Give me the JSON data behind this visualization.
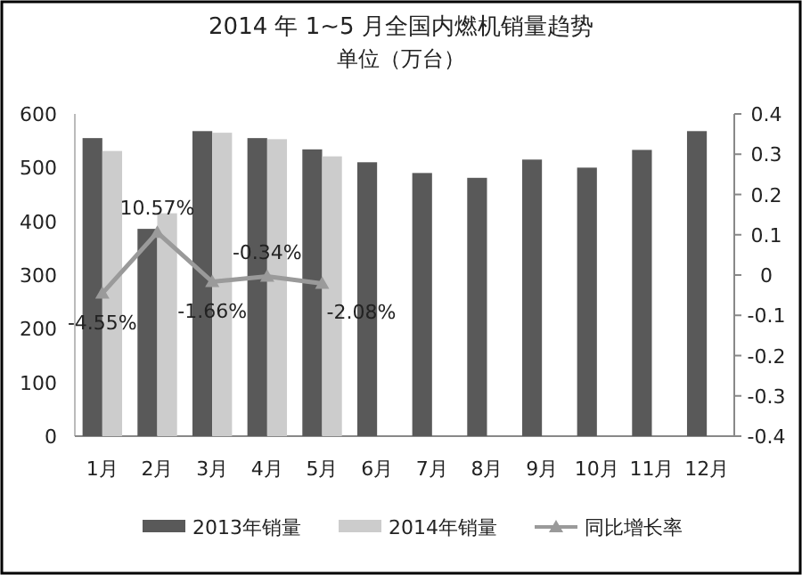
{
  "chart_data": {
    "type": "bar",
    "title": "2014 年 1~5 月全国内燃机销量趋势",
    "subtitle": "单位（万台）",
    "categories": [
      "1月",
      "2月",
      "3月",
      "4月",
      "5月",
      "6月",
      "7月",
      "8月",
      "9月",
      "10月",
      "11月",
      "12月"
    ],
    "series": [
      {
        "name": "2013年销量",
        "color": "#595959",
        "values": [
          555,
          386,
          568,
          555,
          534,
          510,
          490,
          481,
          515,
          500,
          533,
          568
        ]
      },
      {
        "name": "2014年销量",
        "color": "#cccccc",
        "values": [
          531,
          415,
          565,
          553,
          521,
          null,
          null,
          null,
          null,
          null,
          null,
          null
        ]
      },
      {
        "name": "同比增长率",
        "type": "line",
        "axis": "y2",
        "marker": "triangle",
        "color": "#9a9a9a",
        "values": [
          -0.0455,
          0.1057,
          -0.0166,
          -0.0034,
          -0.0208,
          null,
          null,
          null,
          null,
          null,
          null,
          null
        ],
        "value_labels": [
          "-4.55%",
          "10.57%",
          "-1.66%",
          "-0.34%",
          "-2.08%",
          null,
          null,
          null,
          null,
          null,
          null,
          null
        ]
      }
    ],
    "ylim": [
      0,
      600
    ],
    "yticks": [
      0,
      100,
      200,
      300,
      400,
      500,
      600
    ],
    "y2lim": [
      -0.4,
      0.4
    ],
    "y2ticks": [
      -0.4,
      -0.3,
      -0.2,
      -0.1,
      0,
      0.1,
      0.2,
      0.3,
      0.4
    ],
    "legend": "bottom"
  }
}
